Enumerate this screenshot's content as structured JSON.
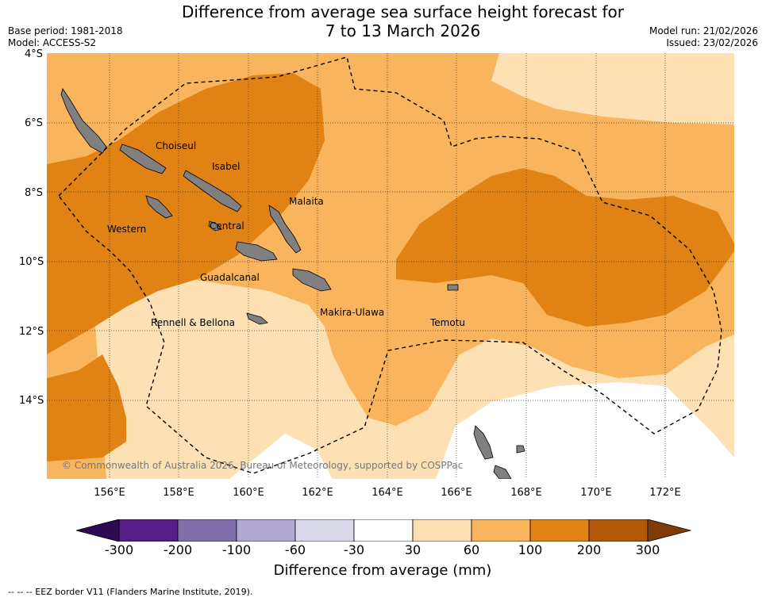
{
  "title_line1": "Difference from average sea surface height forecast for",
  "title_line2": "7 to 13 March 2026",
  "base_period": "Base period: 1981-2018",
  "model": "Model: ACCESS-S2",
  "model_run": "Model run: 21/02/2026",
  "issued": "Issued: 23/02/2026",
  "lat_labels": [
    "4°S",
    "6°S",
    "8°S",
    "10°S",
    "12°S",
    "14°S"
  ],
  "lon_labels": [
    "156°E",
    "158°E",
    "160°E",
    "162°E",
    "164°E",
    "166°E",
    "168°E",
    "170°E",
    "172°E"
  ],
  "places": [
    "Choiseul",
    "Isabel",
    "Malaita",
    "Western",
    "Central",
    "Guadalcanal",
    "Makira-Ulawa",
    "Rennell & Bellona",
    "Temotu"
  ],
  "copyright": "© Commonwealth of Australia 2026, Bureau of Meteorology, supported by COSPPac",
  "colorbar": {
    "title": "Difference from average (mm)",
    "ticks": [
      "-300",
      "-200",
      "-100",
      "-60",
      "-30",
      "30",
      "60",
      "100",
      "200",
      "300"
    ],
    "colors": [
      "#2d0a52",
      "#541e86",
      "#806fab",
      "#b0a8d1",
      "#dadaea",
      "#ffffff",
      "#fde0b4",
      "#f9b55d",
      "#e08214",
      "#b35806",
      "#7f3b08"
    ]
  },
  "footnote": "--  --  -- EEZ border V11 (Flanders Marine Institute, 2019)."
}
